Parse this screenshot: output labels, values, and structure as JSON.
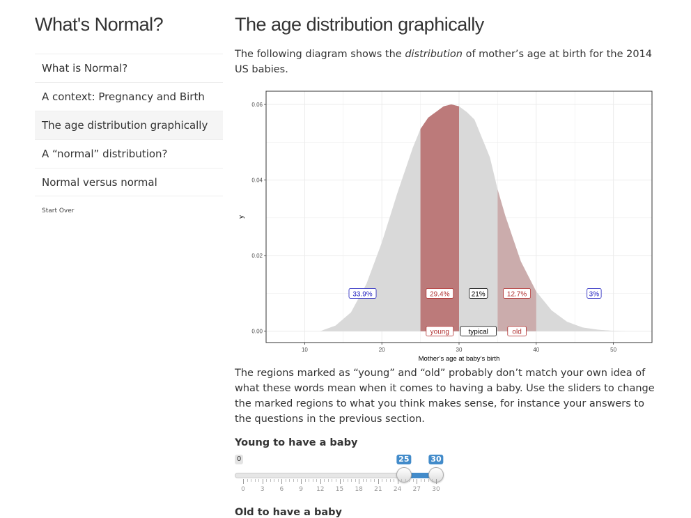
{
  "app": {
    "title": "What's Normal?"
  },
  "sidebar": {
    "items": [
      {
        "label": "What is Normal?"
      },
      {
        "label": "A context: Pregnancy and Birth"
      },
      {
        "label": "The age distribution graphically"
      },
      {
        "label": "A “normal” distribution?"
      },
      {
        "label": "Normal versus normal"
      }
    ],
    "start_over": "Start Over"
  },
  "main": {
    "title": "The age distribution graphically",
    "intro_before": "The following diagram shows the ",
    "intro_em": "distribution",
    "intro_after": " of mother’s age at birth for the 2014 US babies.",
    "explain": "The regions marked as “young” and “old” probably don’t match your own idea of what these words mean when it comes to having a baby. Use the sliders to change the marked regions to what you think makes sense, for instance your answers to the questions in the previous section.",
    "young_label": "Young to have a baby",
    "old_label": "Old to have a baby"
  },
  "slider_young": {
    "min_label": "0",
    "from": 25,
    "to": 30,
    "min": 0,
    "max": 30,
    "ticks": [
      "0",
      "3",
      "6",
      "9",
      "12",
      "15",
      "18",
      "21",
      "24",
      "27",
      "30"
    ],
    "accent": "#428bca"
  },
  "chart_data": {
    "type": "area",
    "xlabel": "Mother’s age at baby’s birth",
    "ylabel": "y",
    "xlim": [
      5,
      55
    ],
    "ylim": [
      -0.003,
      0.0635
    ],
    "x_ticks": [
      10,
      20,
      30,
      40,
      50
    ],
    "y_ticks": [
      0.0,
      0.02,
      0.04,
      0.06
    ],
    "y_tick_labels": [
      "0.00",
      "0.02",
      "0.04",
      "0.06"
    ],
    "grid": true,
    "density": {
      "x": [
        12,
        14,
        16,
        18,
        20,
        22,
        24,
        25,
        26,
        28,
        29,
        30,
        31,
        32,
        34,
        35,
        36,
        38,
        40,
        42,
        44,
        46,
        48,
        50,
        52
      ],
      "y": [
        0.0,
        0.0015,
        0.005,
        0.0125,
        0.0235,
        0.0365,
        0.0485,
        0.0535,
        0.0565,
        0.0595,
        0.06,
        0.0595,
        0.058,
        0.056,
        0.046,
        0.0375,
        0.0305,
        0.0185,
        0.0105,
        0.0055,
        0.0025,
        0.001,
        0.0004,
        0.0001,
        0.0
      ]
    },
    "regions": [
      {
        "name": "young",
        "from": 25,
        "to": 30,
        "color": "#b15a5a",
        "opacity": 0.75
      },
      {
        "name": "old",
        "from": 35,
        "to": 40,
        "color": "#b15a5a",
        "opacity": 0.35
      }
    ],
    "base_color": "#d9d9d9",
    "percent_labels": [
      {
        "x": 17.5,
        "text": "33.9%",
        "color": "#1f1fbf"
      },
      {
        "x": 27.5,
        "text": "29.4%",
        "color": "#b02f2f"
      },
      {
        "x": 32.5,
        "text": "21%",
        "color": "#000000"
      },
      {
        "x": 37.5,
        "text": "12.7%",
        "color": "#b02f2f"
      },
      {
        "x": 47.5,
        "text": "3%",
        "color": "#1f1fbf"
      }
    ],
    "percent_label_y": 0.01,
    "region_labels": [
      {
        "x": 27.5,
        "text": "young",
        "color": "#b02f2f"
      },
      {
        "x": 32.5,
        "text": "typical",
        "color": "#000000"
      },
      {
        "x": 37.5,
        "text": "old",
        "color": "#b02f2f"
      }
    ],
    "region_label_y": 0.0
  }
}
